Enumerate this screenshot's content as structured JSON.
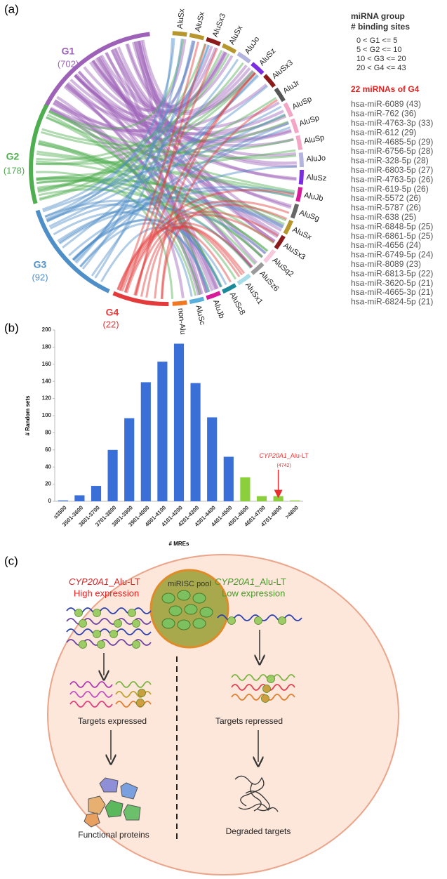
{
  "panel_a": {
    "label": "(a)",
    "groups": [
      {
        "name": "G1",
        "count": "(702)",
        "color": "#9d62b8"
      },
      {
        "name": "G2",
        "count": "(178)",
        "color": "#4fae4f"
      },
      {
        "name": "G3",
        "count": "(92)",
        "color": "#4f8fc8"
      },
      {
        "name": "G4",
        "count": "(22)",
        "color": "#e33b3b"
      }
    ],
    "segments": [
      {
        "name": "AluSx",
        "color": "#b8962e"
      },
      {
        "name": "AluSx",
        "color": "#b8962e"
      },
      {
        "name": "AluSx3",
        "color": "#8b1a1a"
      },
      {
        "name": "AluSx",
        "color": "#b8962e"
      },
      {
        "name": "AluJo",
        "color": "#b4b4e0"
      },
      {
        "name": "AluSz",
        "color": "#7b2be2"
      },
      {
        "name": "AluSx3",
        "color": "#8b1a1a"
      },
      {
        "name": "AluJr",
        "color": "#555555"
      },
      {
        "name": "AluSp",
        "color": "#f4a6c6"
      },
      {
        "name": "AluSp",
        "color": "#f4a6c6"
      },
      {
        "name": "AluSp",
        "color": "#f4a6c6"
      },
      {
        "name": "AluJo",
        "color": "#b4b4e0"
      },
      {
        "name": "AluSz",
        "color": "#7b2be2"
      },
      {
        "name": "AluJb",
        "color": "#d81b9b"
      },
      {
        "name": "AluSg",
        "color": "#666666"
      },
      {
        "name": "AluSx",
        "color": "#b8962e"
      },
      {
        "name": "AluSx3",
        "color": "#8b1a1a"
      },
      {
        "name": "AluSq2",
        "color": "#f8c8dc"
      },
      {
        "name": "AluSz6",
        "color": "#9a9a9a"
      },
      {
        "name": "AluSx1",
        "color": "#a8dce8"
      },
      {
        "name": "AluSc8",
        "color": "#1a8a9a"
      },
      {
        "name": "AluJb",
        "color": "#d81b9b"
      },
      {
        "name": "AluSc",
        "color": "#5aaedc"
      },
      {
        "name": "non-Alu",
        "color": "#f07820"
      }
    ],
    "legend_title": "miRNA group",
    "legend_subtitle": "# binding sites",
    "legend_rows": [
      "0 < G1 <= 5",
      "5 < G2 <= 10",
      "10 < G3 <= 20",
      "20 < G4 <= 43"
    ],
    "g4_title": "22 miRNAs of G4",
    "g4_mirnas": [
      "hsa-miR-6089 (43)",
      "hsa-miR-762 (36)",
      "hsa-miR-4763-3p (33)",
      "hsa-miR-612 (29)",
      "hsa-miR-4685-5p (29)",
      "hsa-miR-6756-5p (28)",
      "hsa-miR-328-5p (28)",
      "hsa-miR-6803-5p (27)",
      "hsa-miR-4763-5p (26)",
      "hsa-miR-619-5p (26)",
      "hsa-miR-5572 (26)",
      "hsa-miR-5787 (26)",
      "hsa-miR-638 (25)",
      "hsa-miR-6848-5p (25)",
      "hsa-miR-6861-5p (25)",
      "hsa-miR-4656 (24)",
      "hsa-miR-6749-5p (24)",
      "hsa-miR-8089 (23)",
      "hsa-miR-6813-5p (22)",
      "hsa-miR-3620-5p (21)",
      "hsa-miR-4665-3p (21)",
      "hsa-miR-6824-5p (21)"
    ]
  },
  "chart_data": {
    "type": "bar",
    "panel_label": "(b)",
    "x_label": "# MREs",
    "y_label": "# Random sets",
    "categories": [
      "≤3500",
      "3501-3600",
      "3601-3700",
      "3701-3800",
      "3801-3900",
      "3901-4000",
      "4001-4100",
      "4101-4200",
      "4201-4300",
      "4301-4400",
      "4401-4500",
      "4501-4600",
      "4601-4700",
      "4701-4800",
      ">4800"
    ],
    "values": [
      1,
      7,
      18,
      60,
      97,
      139,
      163,
      184,
      138,
      98,
      52,
      28,
      6,
      6,
      1
    ],
    "colors": [
      "#3a6fd8",
      "#3a6fd8",
      "#3a6fd8",
      "#3a6fd8",
      "#3a6fd8",
      "#3a6fd8",
      "#3a6fd8",
      "#3a6fd8",
      "#3a6fd8",
      "#3a6fd8",
      "#3a6fd8",
      "#8ccf3c",
      "#8ccf3c",
      "#8ccf3c",
      "#8ccf3c"
    ],
    "ylim": [
      0,
      200
    ],
    "yticks": [
      0,
      20,
      40,
      60,
      80,
      100,
      120,
      140,
      160,
      180,
      200
    ],
    "annotation": {
      "gene": "CYP20A1",
      "suffix": "_Alu-LT",
      "value_text": "(4742)",
      "category_index": 13,
      "color": "#e83030"
    }
  },
  "panel_c": {
    "label": "(c)",
    "left_gene": "CYP20A1",
    "left_suffix": "_Alu-LT",
    "left_state": "High expression",
    "pool": "miRISC pool",
    "right_gene": "CYP20A1",
    "right_suffix": "_Alu-LT",
    "right_state": "Low expression",
    "left_targets": "Targets expressed",
    "right_targets": "Targets repressed",
    "left_outcome": "Functional proteins",
    "right_outcome": "Degraded targets"
  }
}
